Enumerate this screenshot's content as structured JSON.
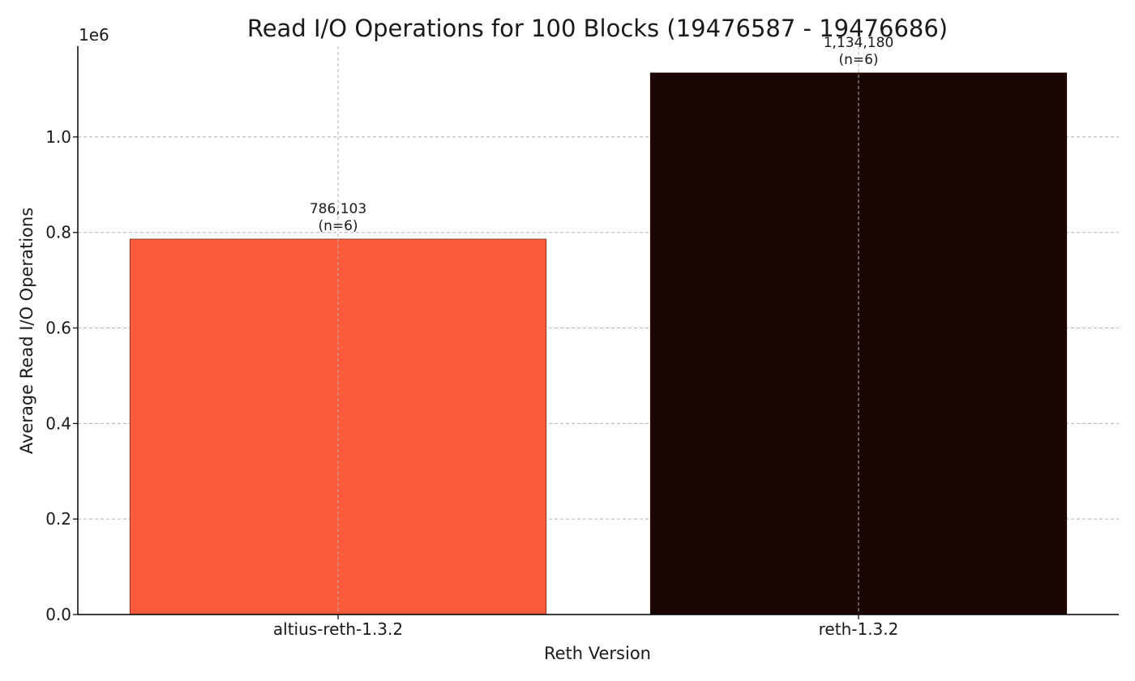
{
  "chart_data": {
    "type": "bar",
    "title": "Read I/O Operations for 100 Blocks (19476587 - 19476686)",
    "xlabel": "Reth Version",
    "ylabel": "Average Read I/O Operations",
    "offset_label": "1e6",
    "categories": [
      "altius-reth-1.3.2",
      "reth-1.3.2"
    ],
    "values": [
      786103,
      1134180
    ],
    "bar_labels": [
      [
        "786,103",
        "(n=6)"
      ],
      [
        "1,134,180",
        "(n=6)"
      ]
    ],
    "colors": [
      "#fb5a3b",
      "#190501"
    ],
    "ylim": [
      0,
      1190000
    ],
    "yticks": [
      0,
      200000,
      400000,
      600000,
      800000,
      1000000
    ],
    "ytick_labels": [
      "0.0",
      "0.2",
      "0.4",
      "0.6",
      "0.8",
      "1.0"
    ],
    "grid": true
  }
}
